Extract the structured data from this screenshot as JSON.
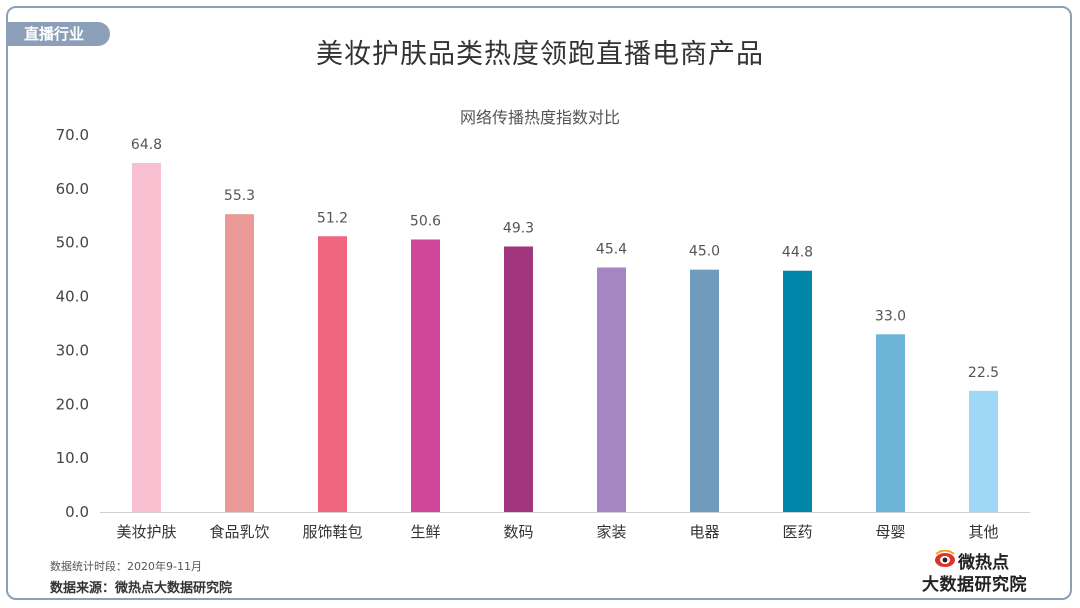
{
  "header": {
    "tag": "直播行业",
    "title": "美妆护肤品类热度领跑直播电商产品"
  },
  "chart_data": {
    "type": "bar",
    "title": "网络传播热度指数对比",
    "xlabel": "",
    "ylabel": "",
    "ylim": [
      0,
      70
    ],
    "yticks": [
      "0.0",
      "10.0",
      "20.0",
      "30.0",
      "40.0",
      "50.0",
      "60.0",
      "70.0"
    ],
    "categories": [
      "美妆护肤",
      "食品乳饮",
      "服饰鞋包",
      "生鲜",
      "数码",
      "家装",
      "电器",
      "医药",
      "母婴",
      "其他"
    ],
    "values": [
      64.8,
      55.3,
      51.2,
      50.6,
      49.3,
      45.4,
      45.0,
      44.8,
      33.0,
      22.5
    ],
    "value_labels": [
      "64.8",
      "55.3",
      "51.2",
      "50.6",
      "49.3",
      "45.4",
      "45.0",
      "44.8",
      "33.0",
      "22.5"
    ],
    "colors": [
      "#f7bfcf",
      "#e99a98",
      "#f0667f",
      "#d0479a",
      "#a1367f",
      "#a586c2",
      "#6f9bbd",
      "#0086a8",
      "#6db5d8",
      "#9fd7f7"
    ],
    "grid": false,
    "legend": "none"
  },
  "footer": {
    "period": "数据统计时段：2020年9-11月",
    "source": "数据来源：微热点大数据研究院",
    "logo_line1": "微热点",
    "logo_line2": "大数据研究院",
    "logo_icon": "eye-logo-icon"
  }
}
